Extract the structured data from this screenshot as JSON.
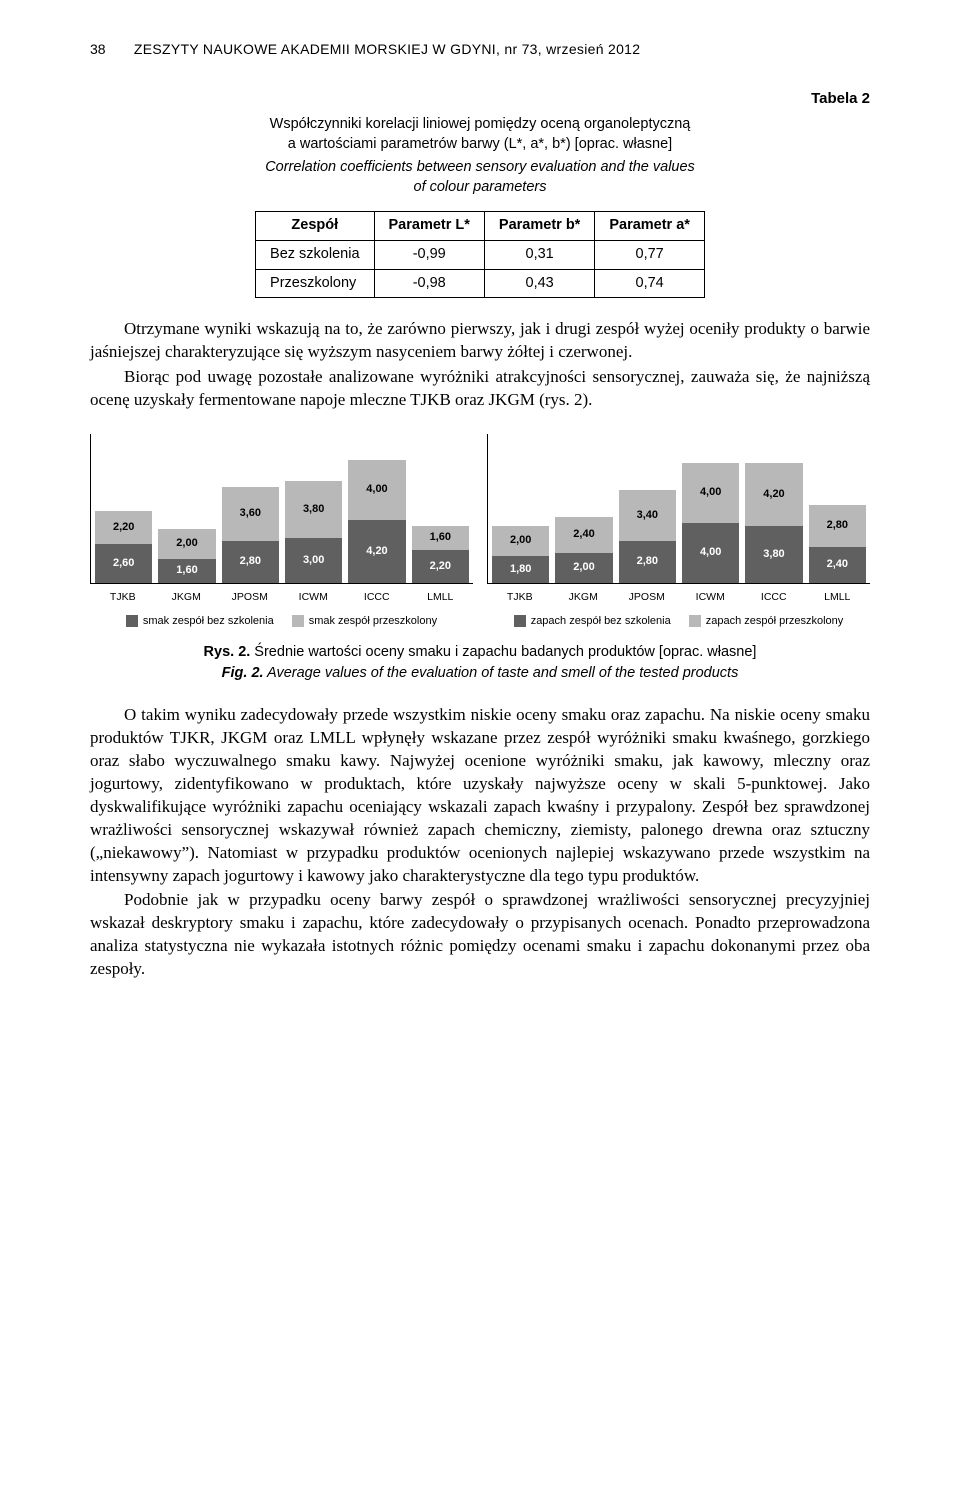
{
  "header": {
    "page_num": "38",
    "title": "ZESZYTY NAUKOWE AKADEMII MORSKIEJ W GDYNI, nr 73, wrzesień 2012"
  },
  "table2": {
    "label": "Tabela 2",
    "caption_pl_l1": "Współczynniki korelacji liniowej pomiędzy oceną organoleptyczną",
    "caption_pl_l2": "a wartościami parametrów barwy (L*, a*, b*) [oprac. własne]",
    "caption_en_l1": "Correlation coefficients between sensory evaluation and the values",
    "caption_en_l2": "of colour parameters",
    "columns": [
      "Zespół",
      "Parametr L*",
      "Parametr b*",
      "Parametr a*"
    ],
    "rows": [
      [
        "Bez szkolenia",
        "-0,99",
        "0,31",
        "0,77"
      ],
      [
        "Przeszkolony",
        "-0,98",
        "0,43",
        "0,74"
      ]
    ]
  },
  "para1": "Otrzymane wyniki wskazują na to, że zarówno pierwszy, jak i drugi zespół wyżej oceniły produkty o barwie jaśniejszej charakteryzujące się wyższym nasyceniem barwy żółtej i czerwonej.",
  "para2": "Biorąc pod uwagę pozostałe analizowane wyróżniki atrakcyjności sensorycznej, zauważa się, że najniższą ocenę uzyskały fermentowane napoje mleczne TJKB oraz JKGM (rys. 2).",
  "charts": {
    "scale": 15,
    "colors": {
      "series1": "#606060",
      "series2": "#b8b8b8",
      "axis": "#000000"
    },
    "categories": [
      "TJKB",
      "JKGM",
      "JPOSM",
      "ICWM",
      "ICCC",
      "LMLL"
    ],
    "left": {
      "legend": [
        "smak zespół bez szkolenia",
        "smak zespół przeszkolony"
      ],
      "data": [
        {
          "s1": "2,60",
          "s2": "2,20"
        },
        {
          "s1": "1,60",
          "s2": "2,00"
        },
        {
          "s1": "2,80",
          "s2": "3,60"
        },
        {
          "s1": "3,00",
          "s2": "3,80"
        },
        {
          "s1": "4,20",
          "s2": "4,00"
        },
        {
          "s1": "2,20",
          "s2": "1,60"
        }
      ]
    },
    "right": {
      "legend": [
        "zapach zespół bez szkolenia",
        "zapach zespół przeszkolony"
      ],
      "data": [
        {
          "s1": "1,80",
          "s2": "2,00"
        },
        {
          "s1": "2,00",
          "s2": "2,40"
        },
        {
          "s1": "2,80",
          "s2": "3,40"
        },
        {
          "s1": "4,00",
          "s2": "4,00"
        },
        {
          "s1": "3,80",
          "s2": "4,20"
        },
        {
          "s1": "2,40",
          "s2": "2,80"
        }
      ]
    }
  },
  "fig2": {
    "label_pl": "Rys. 2.",
    "text_pl": " Średnie wartości oceny smaku i zapachu badanych produktów [oprac. własne]",
    "label_en": "Fig. 2.",
    "text_en": " Average values of the evaluation of taste and smell of the tested products"
  },
  "para3": "O takim wyniku zadecydowały przede wszystkim niskie oceny smaku oraz zapachu. Na niskie oceny smaku produktów TJKR, JKGM oraz LMLL wpłynęły wskazane przez zespół wyróżniki smaku kwaśnego, gorzkiego oraz słabo wyczuwalnego smaku kawy. Najwyżej ocenione wyróżniki smaku, jak kawowy, mleczny oraz jogurtowy, zidentyfikowano w produktach, które uzyskały najwyższe oceny w skali 5-punktowej. Jako dyskwalifikujące wyróżniki zapachu oceniający wskazali zapach kwaśny i przypalony. Zespół bez sprawdzonej wrażliwości sensorycznej wskazywał również zapach chemiczny, ziemisty, palonego drewna oraz sztuczny („niekawowy”). Natomiast w przypadku produktów ocenionych najlepiej wskazywano przede wszystkim na intensywny zapach jogurtowy i kawowy jako charakterystyczne dla tego typu produktów.",
  "para4": "Podobnie jak w przypadku oceny barwy zespół o sprawdzonej wrażliwości sensorycznej precyzyjniej wskazał deskryptory smaku i zapachu, które zadecydowały o przypisanych ocenach. Ponadto przeprowadzona analiza statystyczna nie wykazała istotnych różnic pomiędzy ocenami smaku i zapachu dokonanymi przez oba zespoły."
}
